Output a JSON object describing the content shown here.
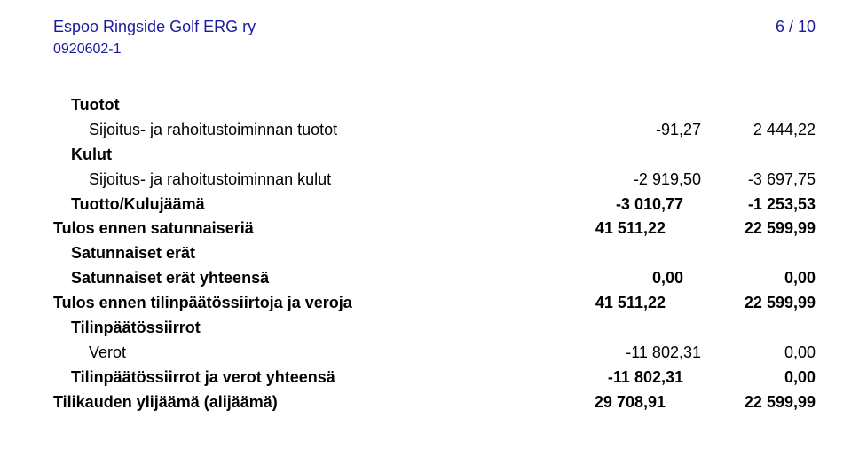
{
  "header": {
    "title": "Espoo Ringside Golf ERG ry",
    "page_indicator": "6 / 10",
    "code": "0920602-1"
  },
  "rows": [
    {
      "kind": "section",
      "label": "Tuotot"
    },
    {
      "kind": "line",
      "label": "Sijoitus- ja rahoitustoiminnan tuotot",
      "c1": "-91,27",
      "c2": "2 444,22"
    },
    {
      "kind": "section",
      "label": "Kulut"
    },
    {
      "kind": "line",
      "label": "Sijoitus- ja rahoitustoiminnan kulut",
      "c1": "-2 919,50",
      "c2": "-3 697,75"
    },
    {
      "kind": "boldline",
      "label": "Tuotto/Kulujäämä",
      "c1": "-3 010,77",
      "c2": "-1 253,53"
    },
    {
      "kind": "boldflush",
      "label": "Tulos ennen satunnaiseriä",
      "c1": "41 511,22",
      "c2": "22 599,99"
    },
    {
      "kind": "section",
      "label": "Satunnaiset erät"
    },
    {
      "kind": "boldline",
      "label": "Satunnaiset erät yhteensä",
      "c1": "0,00",
      "c2": "0,00"
    },
    {
      "kind": "boldflush",
      "label": "Tulos ennen tilinpäätössiirtoja ja veroja",
      "c1": "41 511,22",
      "c2": "22 599,99"
    },
    {
      "kind": "section",
      "label": "Tilinpäätössiirrot"
    },
    {
      "kind": "line2",
      "label": "Verot",
      "c1": "-11 802,31",
      "c2": "0,00"
    },
    {
      "kind": "boldline",
      "label": "Tilinpäätössiirrot ja verot yhteensä",
      "c1": "-11 802,31",
      "c2": "0,00"
    },
    {
      "kind": "boldflush",
      "label": "Tilikauden ylijäämä (alijäämä)",
      "c1": "29 708,91",
      "c2": "22 599,99"
    }
  ]
}
